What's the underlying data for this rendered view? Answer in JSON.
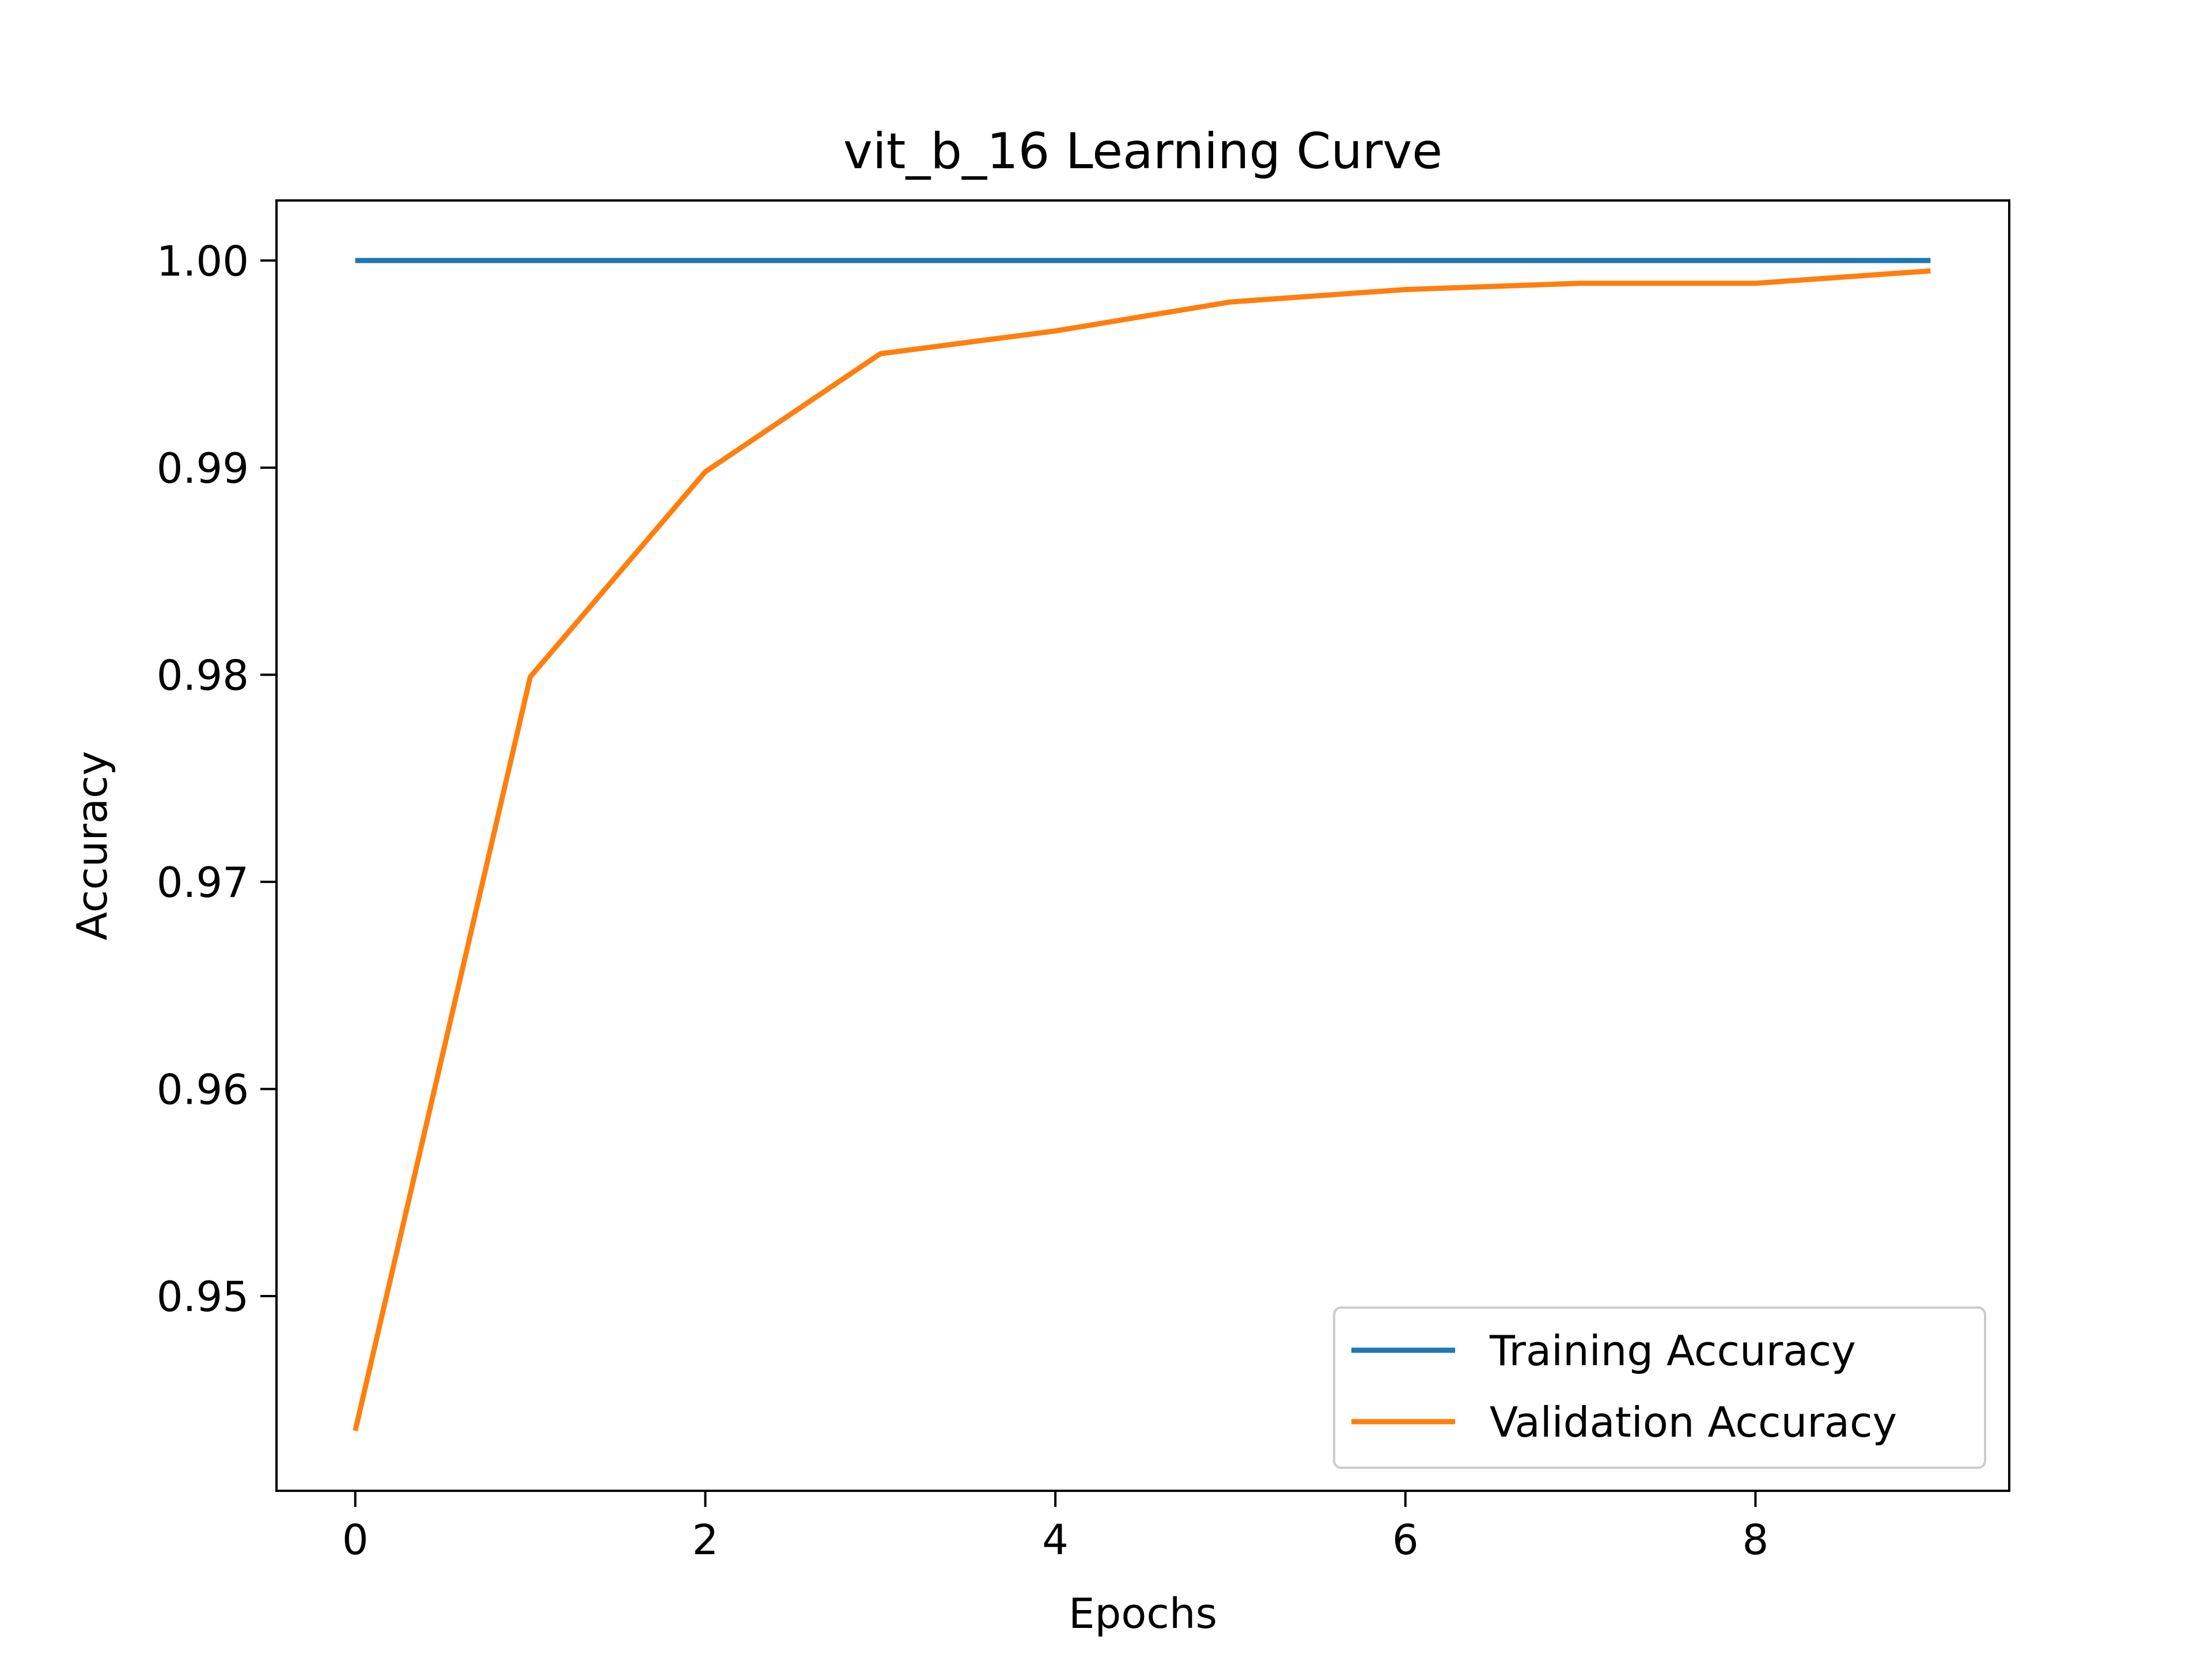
{
  "chart_data": {
    "type": "line",
    "title": "vit_b_16 Learning Curve",
    "xlabel": "Epochs",
    "ylabel": "Accuracy",
    "x": [
      0,
      1,
      2,
      3,
      4,
      5,
      6,
      7,
      8,
      9
    ],
    "xlim": [
      -0.45,
      9.45
    ],
    "ylim": [
      0.9406,
      1.0029
    ],
    "xticks": [
      0,
      2,
      4,
      6,
      8
    ],
    "yticks": [
      0.95,
      0.96,
      0.97,
      0.98,
      0.99,
      1.0
    ],
    "xtick_labels": [
      "0",
      "2",
      "4",
      "6",
      "8"
    ],
    "ytick_labels": [
      "0.95",
      "0.96",
      "0.97",
      "0.98",
      "0.99",
      "1.00"
    ],
    "grid": false,
    "legend_position": "lower-right",
    "series": [
      {
        "name": "Training Accuracy",
        "color": "#1f77b4",
        "values": [
          1.0,
          1.0,
          1.0,
          1.0,
          1.0,
          1.0,
          1.0,
          1.0,
          1.0,
          1.0
        ]
      },
      {
        "name": "Validation Accuracy",
        "color": "#ff7f0e",
        "values": [
          0.9435,
          0.9799,
          0.9898,
          0.9955,
          0.9966,
          0.998,
          0.9986,
          0.9989,
          0.9989,
          0.9995
        ]
      }
    ]
  }
}
